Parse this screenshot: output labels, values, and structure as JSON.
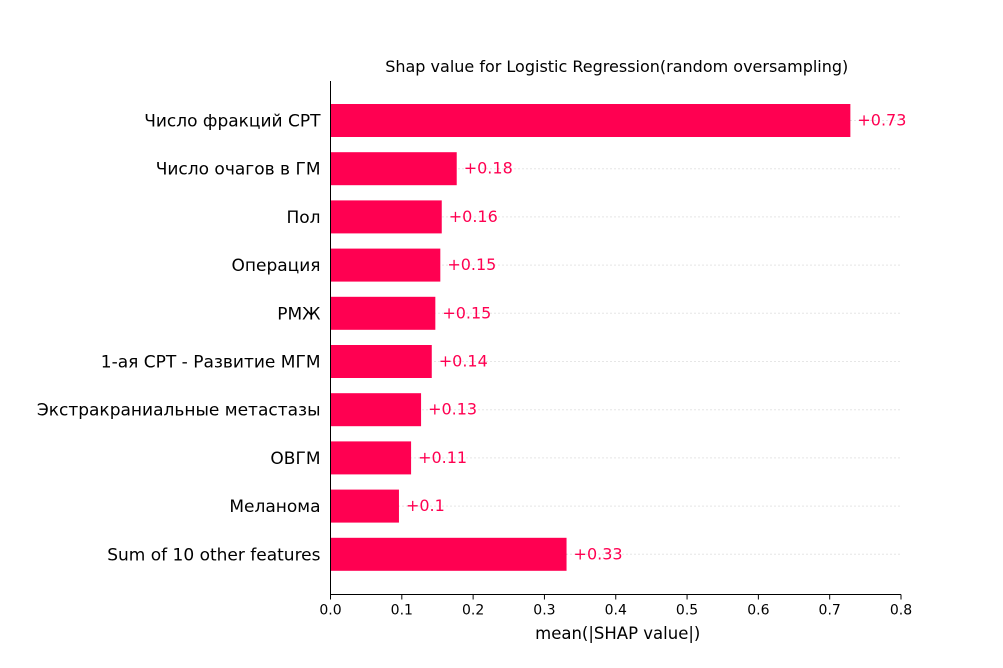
{
  "chart_data": {
    "type": "bar",
    "orientation": "horizontal",
    "title": "Shap value for Logistic Regression(random oversampling)",
    "xlabel": "mean(|SHAP value|)",
    "ylabel": "",
    "xlim": [
      0,
      0.8
    ],
    "xticks": [
      0.0,
      0.1,
      0.2,
      0.3,
      0.4,
      0.5,
      0.6,
      0.7,
      0.8
    ],
    "xtick_labels": [
      "0.0",
      "0.1",
      "0.2",
      "0.3",
      "0.4",
      "0.5",
      "0.6",
      "0.7",
      "0.8"
    ],
    "grid": "dotted horizontal guide lines per bar",
    "bar_color": "#ff0051",
    "categories": [
      "Число фракций СРТ",
      "Число очагов в ГМ",
      "Пол",
      "Операция",
      "РМЖ",
      "1-ая СРТ - Развитие МГМ",
      "Экстракраниальные метастазы",
      "ОВГМ",
      "Меланома",
      "Sum of 10 other features"
    ],
    "values": [
      0.729,
      0.177,
      0.156,
      0.154,
      0.147,
      0.142,
      0.127,
      0.113,
      0.096,
      0.331
    ],
    "value_labels": [
      "+0.73",
      "+0.18",
      "+0.16",
      "+0.15",
      "+0.15",
      "+0.14",
      "+0.13",
      "+0.11",
      "+0.1",
      "+0.33"
    ]
  }
}
